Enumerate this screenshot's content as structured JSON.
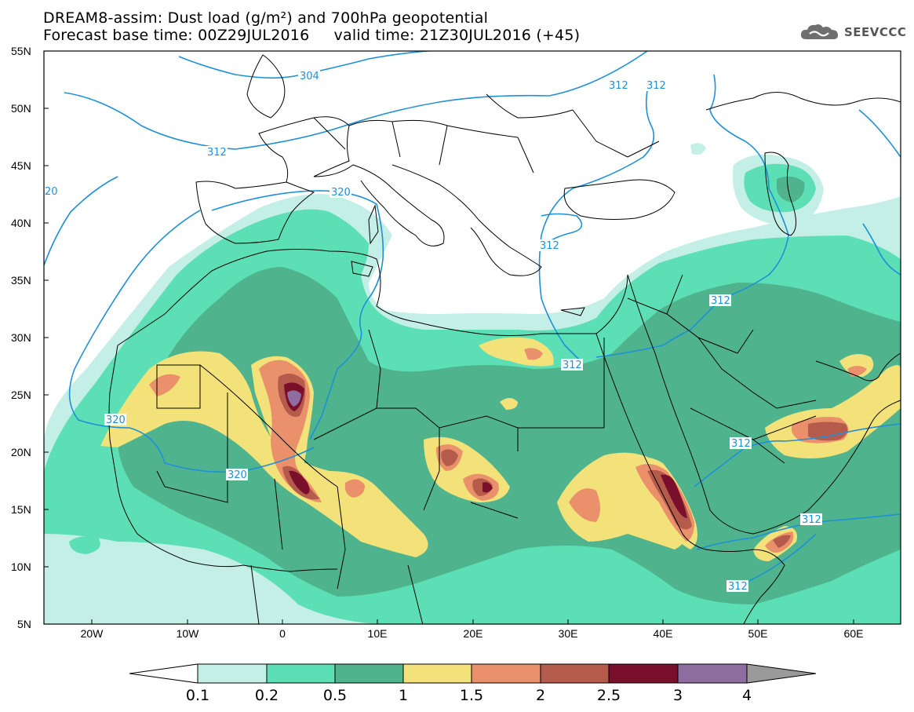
{
  "header": {
    "title_line1": "DREAM8-assim: Dust load (g/m²) and 700hPa geopotential",
    "title_line2": "Forecast base time: 00Z29JUL2016     valid time: 21Z30JUL2016 (+45)",
    "logo_text": "SEEVCCC"
  },
  "axes": {
    "lat_labels": [
      "55N",
      "50N",
      "45N",
      "40N",
      "35N",
      "30N",
      "25N",
      "20N",
      "15N",
      "10N",
      "5N"
    ],
    "lon_labels": [
      "20W",
      "10W",
      "0",
      "10E",
      "20E",
      "30E",
      "40E",
      "50E",
      "60E"
    ]
  },
  "contour_labels": [
    "304",
    "312",
    "312",
    "312",
    "320",
    "312",
    "312",
    "320",
    "320",
    "312",
    "312",
    "312",
    "312",
    "20"
  ],
  "colorbar": {
    "tick_labels": [
      "0.1",
      "0.2",
      "0.5",
      "1",
      "1.5",
      "2",
      "2.5",
      "3",
      "4"
    ],
    "colors": [
      "#c3efe6",
      "#5ddfb6",
      "#4fb48d",
      "#f3e27a",
      "#ea906a",
      "#b55b4c",
      "#7a0f2c",
      "#8e6ea0",
      "#9a9a9a"
    ]
  },
  "colors": {
    "contour_line": "#1e90d8",
    "coastline": "#000000",
    "background": "#ffffff"
  }
}
